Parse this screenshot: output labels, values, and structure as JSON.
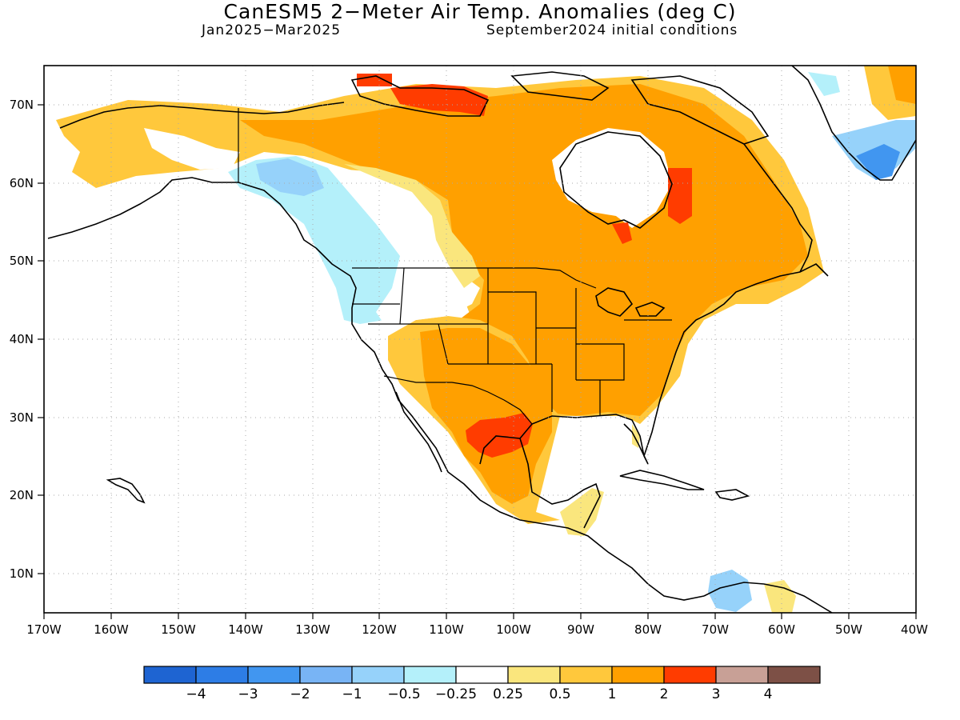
{
  "title": "CanESM5 2−Meter Air Temp. Anomalies (deg C)",
  "subtitle_left": "Jan2025−Mar2025",
  "subtitle_right": "September2024 initial conditions",
  "map": {
    "lon_labels": [
      "170W",
      "160W",
      "150W",
      "140W",
      "130W",
      "120W",
      "110W",
      "100W",
      "90W",
      "80W",
      "70W",
      "60W",
      "50W",
      "40W"
    ],
    "lat_labels": [
      "10N",
      "20N",
      "30N",
      "40N",
      "50N",
      "60N",
      "70N"
    ]
  },
  "legend": {
    "colors": [
      "#1e64d2",
      "#2d7de6",
      "#4196f0",
      "#78b4f5",
      "#96d2fa",
      "#b4f0fa",
      "#ffffff",
      "#fae67d",
      "#ffc83c",
      "#ffa000",
      "#ff3c00",
      "#c8a096",
      "#7d5046"
    ],
    "labels": [
      "−4",
      "−3",
      "−2",
      "−1",
      "−0.5",
      "−0.25",
      "0.25",
      "0.5",
      "1",
      "2",
      "3",
      "4"
    ]
  },
  "colors": {
    "near_normal": "#ffffff",
    "warm_light": "#fae67d",
    "warm_mid": "#ffc83c",
    "warm_strong": "#ffa000",
    "warm_very": "#ff3c00",
    "cool_light": "#b4f0fa",
    "cool_mid": "#96d2fa",
    "cool_strong": "#78b4f5",
    "cool_very": "#4196f0"
  }
}
